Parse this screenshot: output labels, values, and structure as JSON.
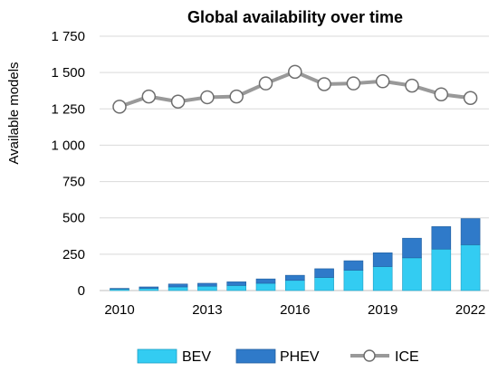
{
  "chart_data": {
    "type": "bar",
    "title": "Global availability over time",
    "ylabel": "Available models",
    "xlabel": "",
    "ylim": [
      0,
      1750
    ],
    "yticks": [
      0,
      250,
      500,
      750,
      1000,
      1250,
      1500,
      1750
    ],
    "ytick_labels": [
      "0",
      "250",
      "500",
      "750",
      "1 000",
      "1 250",
      "1 500",
      "1 750"
    ],
    "categories": [
      2010,
      2011,
      2012,
      2013,
      2014,
      2015,
      2016,
      2017,
      2018,
      2019,
      2020,
      2021,
      2022
    ],
    "xtick_labels": [
      "2010",
      "2013",
      "2016",
      "2019",
      "2022"
    ],
    "xtick_years": [
      2010,
      2013,
      2016,
      2019,
      2022
    ],
    "grid": true,
    "legend_position": "bottom",
    "series": [
      {
        "name": "BEV",
        "kind": "stacked-bar",
        "color": "#33ccf2",
        "values": [
          10,
          15,
          25,
          30,
          35,
          50,
          70,
          90,
          140,
          165,
          225,
          285,
          315
        ]
      },
      {
        "name": "PHEV",
        "kind": "stacked-bar",
        "color": "#2f7ac9",
        "values": [
          5,
          10,
          20,
          20,
          25,
          30,
          35,
          60,
          65,
          95,
          135,
          155,
          180
        ]
      },
      {
        "name": "ICE",
        "kind": "line",
        "color": "#999999",
        "values": [
          1265,
          1335,
          1300,
          1330,
          1335,
          1425,
          1505,
          1420,
          1425,
          1440,
          1410,
          1350,
          1325
        ]
      }
    ]
  }
}
